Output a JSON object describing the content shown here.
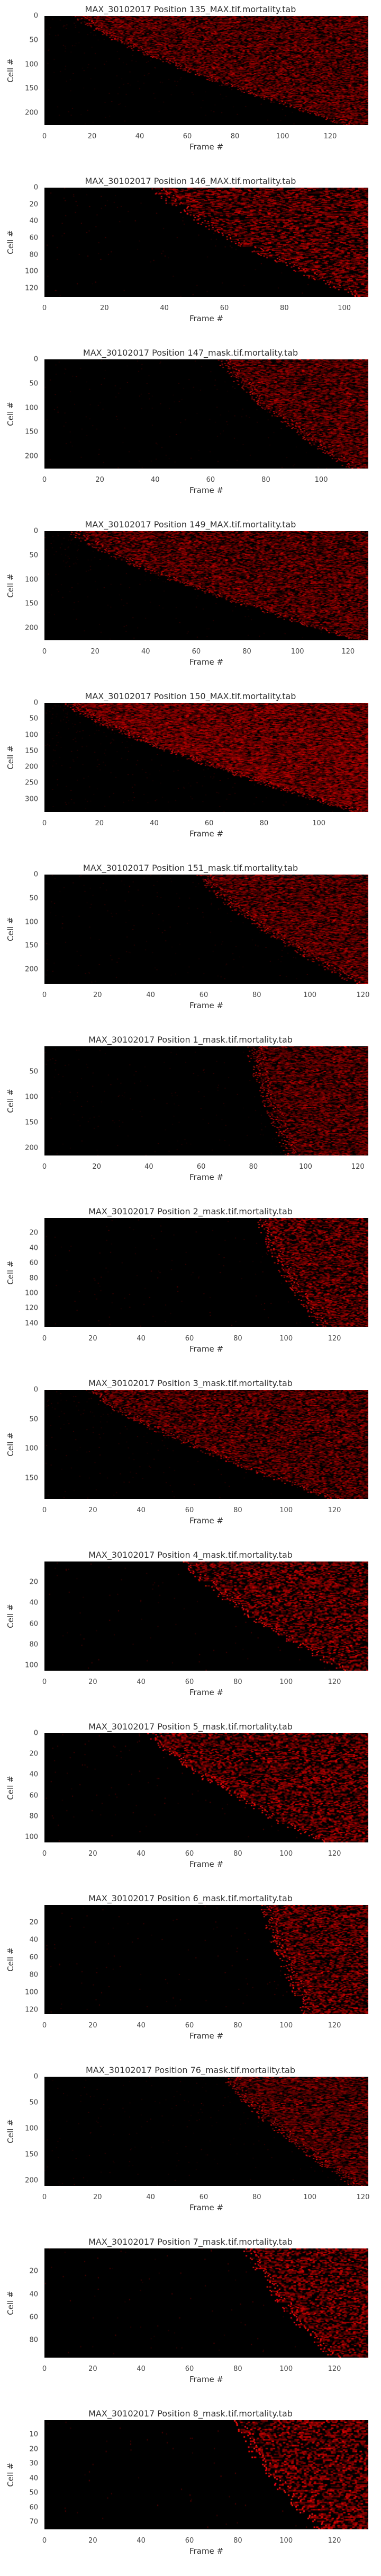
{
  "chart_data": [
    {
      "type": "heatmap",
      "title": "MAX_30102017 Position 135_MAX.tif.mortality.tab",
      "xlabel": "Frame #",
      "ylabel": "Cell #",
      "xlim": [
        0,
        136
      ],
      "ylim": [
        225,
        0
      ],
      "xticks": [
        0,
        20,
        40,
        60,
        80,
        100,
        120
      ],
      "yticks": [
        0,
        50,
        100,
        150,
        200
      ],
      "onset_frame_range": [
        15,
        128
      ],
      "colormap": "black-red"
    },
    {
      "type": "heatmap",
      "title": "MAX_30102017 Position 146_MAX.tif.mortality.tab",
      "xlabel": "Frame #",
      "ylabel": "Cell #",
      "xlim": [
        0,
        108
      ],
      "ylim": [
        130,
        0
      ],
      "xticks": [
        0,
        20,
        40,
        60,
        80,
        100
      ],
      "yticks": [
        0,
        20,
        40,
        60,
        80,
        100,
        120
      ],
      "onset_frame_range": [
        38,
        106
      ],
      "colormap": "black-red"
    },
    {
      "type": "heatmap",
      "title": "MAX_30102017 Position 147_mask.tif.mortality.tab",
      "xlabel": "Frame #",
      "ylabel": "Cell #",
      "xlim": [
        0,
        117
      ],
      "ylim": [
        225,
        0
      ],
      "xticks": [
        0,
        20,
        40,
        60,
        80,
        100
      ],
      "yticks": [
        0,
        50,
        100,
        150,
        200
      ],
      "onset_frame_range": [
        65,
        112
      ],
      "colormap": "black-red"
    },
    {
      "type": "heatmap",
      "title": "MAX_30102017 Position 149_MAX.tif.mortality.tab",
      "xlabel": "Frame #",
      "ylabel": "Cell #",
      "xlim": [
        0,
        128
      ],
      "ylim": [
        225,
        0
      ],
      "xticks": [
        0,
        20,
        40,
        60,
        80,
        100,
        120
      ],
      "yticks": [
        0,
        50,
        100,
        150,
        200
      ],
      "onset_frame_range": [
        12,
        125
      ],
      "colormap": "black-red"
    },
    {
      "type": "heatmap",
      "title": "MAX_30102017 Position 150_MAX.tif.mortality.tab",
      "xlabel": "Frame #",
      "ylabel": "Cell #",
      "xlim": [
        0,
        118
      ],
      "ylim": [
        340,
        0
      ],
      "xticks": [
        0,
        20,
        40,
        60,
        80,
        100
      ],
      "yticks": [
        0,
        50,
        100,
        150,
        200,
        250,
        300
      ],
      "onset_frame_range": [
        10,
        115
      ],
      "colormap": "black-red"
    },
    {
      "type": "heatmap",
      "title": "MAX_30102017 Position 151_mask.tif.mortality.tab",
      "xlabel": "Frame #",
      "ylabel": "Cell #",
      "xlim": [
        0,
        122
      ],
      "ylim": [
        230,
        0
      ],
      "xticks": [
        0,
        20,
        40,
        60,
        80,
        100,
        120
      ],
      "yticks": [
        0,
        50,
        100,
        150,
        200
      ],
      "onset_frame_range": [
        60,
        118
      ],
      "colormap": "black-red"
    },
    {
      "type": "heatmap",
      "title": "MAX_30102017 Position 1_mask.tif.mortality.tab",
      "xlabel": "Frame #",
      "ylabel": "Cell #",
      "xlim": [
        0,
        124
      ],
      "ylim": [
        215,
        0
      ],
      "xticks": [
        0,
        20,
        40,
        60,
        80,
        100,
        120
      ],
      "yticks": [
        50,
        100,
        150,
        200
      ],
      "onset_frame_range": [
        80,
        95
      ],
      "colormap": "black-red"
    },
    {
      "type": "heatmap",
      "title": "MAX_30102017 Position 2_mask.tif.mortality.tab",
      "xlabel": "Frame #",
      "ylabel": "Cell #",
      "xlim": [
        0,
        134
      ],
      "ylim": [
        145,
        0
      ],
      "xticks": [
        0,
        20,
        40,
        60,
        80,
        100,
        120
      ],
      "yticks": [
        20,
        40,
        60,
        80,
        100,
        120,
        140
      ],
      "onset_frame_range": [
        90,
        115
      ],
      "colormap": "black-red"
    },
    {
      "type": "heatmap",
      "title": "MAX_30102017 Position 3_mask.tif.mortality.tab",
      "xlabel": "Frame #",
      "ylabel": "Cell #",
      "xlim": [
        0,
        134
      ],
      "ylim": [
        185,
        0
      ],
      "xticks": [
        0,
        20,
        40,
        60,
        80,
        100,
        120
      ],
      "yticks": [
        0,
        50,
        100,
        150
      ],
      "onset_frame_range": [
        20,
        120
      ],
      "colormap": "black-red"
    },
    {
      "type": "heatmap",
      "title": "MAX_30102017 Position 4_mask.tif.mortality.tab",
      "xlabel": "Frame #",
      "ylabel": "Cell #",
      "xlim": [
        0,
        134
      ],
      "ylim": [
        105,
        0
      ],
      "xticks": [
        0,
        20,
        40,
        60,
        80,
        100,
        120
      ],
      "yticks": [
        20,
        40,
        60,
        80,
        100
      ],
      "onset_frame_range": [
        60,
        125
      ],
      "colormap": "black-red"
    },
    {
      "type": "heatmap",
      "title": "MAX_30102017 Position 5_mask.tif.mortality.tab",
      "xlabel": "Frame #",
      "ylabel": "Cell #",
      "xlim": [
        0,
        134
      ],
      "ylim": [
        105,
        0
      ],
      "xticks": [
        0,
        20,
        40,
        60,
        80,
        100,
        120
      ],
      "yticks": [
        0,
        20,
        40,
        60,
        80,
        100
      ],
      "onset_frame_range": [
        45,
        115
      ],
      "colormap": "black-red"
    },
    {
      "type": "heatmap",
      "title": "MAX_30102017 Position 6_mask.tif.mortality.tab",
      "xlabel": "Frame #",
      "ylabel": "Cell #",
      "xlim": [
        0,
        134
      ],
      "ylim": [
        125,
        0
      ],
      "xticks": [
        0,
        20,
        40,
        60,
        80,
        100,
        120
      ],
      "yticks": [
        20,
        40,
        60,
        80,
        100,
        120
      ],
      "onset_frame_range": [
        92,
        110
      ],
      "colormap": "black-red"
    },
    {
      "type": "heatmap",
      "title": "MAX_30102017 Position 76_mask.tif.mortality.tab",
      "xlabel": "Frame #",
      "ylabel": "Cell #",
      "xlim": [
        0,
        122
      ],
      "ylim": [
        210,
        0
      ],
      "xticks": [
        0,
        20,
        40,
        60,
        80,
        100,
        120
      ],
      "yticks": [
        0,
        50,
        100,
        150,
        200
      ],
      "onset_frame_range": [
        70,
        118
      ],
      "colormap": "black-red"
    },
    {
      "type": "heatmap",
      "title": "MAX_30102017 Position 7_mask.tif.mortality.tab",
      "xlabel": "Frame #",
      "ylabel": "Cell #",
      "xlim": [
        0,
        134
      ],
      "ylim": [
        95,
        0
      ],
      "xticks": [
        0,
        20,
        40,
        60,
        80,
        100,
        120
      ],
      "yticks": [
        20,
        40,
        60,
        80
      ],
      "onset_frame_range": [
        85,
        120
      ],
      "colormap": "black-red"
    },
    {
      "type": "heatmap",
      "title": "MAX_30102017 Position 8_mask.tif.mortality.tab",
      "xlabel": "Frame #",
      "ylabel": "Cell #",
      "xlim": [
        0,
        134
      ],
      "ylim": [
        75,
        0
      ],
      "xticks": [
        0,
        20,
        40,
        60,
        80,
        100,
        120
      ],
      "yticks": [
        10,
        20,
        30,
        40,
        50,
        60,
        70
      ],
      "onset_frame_range": [
        80,
        115
      ],
      "colormap": "black-red"
    }
  ]
}
